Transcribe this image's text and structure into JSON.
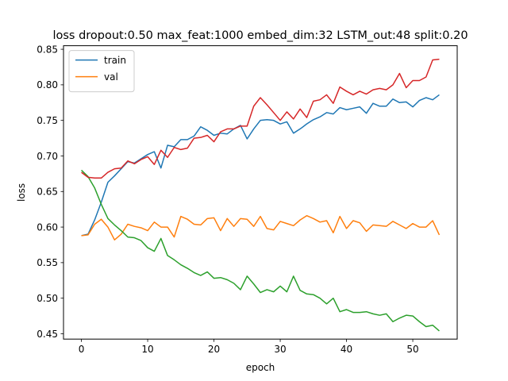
{
  "chart_data": {
    "type": "line",
    "title": "loss dropout:0.50 max_feat:1000 embed_dim:32 LSTM_out:48 split:0.20",
    "xlabel": "epoch",
    "ylabel": "loss",
    "xlim": [
      -2.7,
      56.7
    ],
    "ylim": [
      0.4425,
      0.855
    ],
    "xticks": [
      0,
      10,
      20,
      30,
      40,
      50
    ],
    "yticks": [
      0.45,
      0.5,
      0.55,
      0.6,
      0.65,
      0.7,
      0.75,
      0.8,
      0.85
    ],
    "ytick_labels": [
      "0.45",
      "0.50",
      "0.55",
      "0.60",
      "0.65",
      "0.70",
      "0.75",
      "0.80",
      "0.85"
    ],
    "grid": false,
    "legend_position": "upper-left",
    "x": [
      0,
      1,
      2,
      3,
      4,
      5,
      6,
      7,
      8,
      9,
      10,
      11,
      12,
      13,
      14,
      15,
      16,
      17,
      18,
      19,
      20,
      21,
      22,
      23,
      24,
      25,
      26,
      27,
      28,
      29,
      30,
      31,
      32,
      33,
      34,
      35,
      36,
      37,
      38,
      39,
      40,
      41,
      42,
      43,
      44,
      45,
      46,
      47,
      48,
      49,
      50,
      51,
      52,
      53,
      54
    ],
    "series": [
      {
        "name": "train",
        "color": "#1f77b4",
        "in_legend": true,
        "values": [
          0.588,
          0.59,
          0.61,
          0.635,
          0.663,
          0.672,
          0.682,
          0.692,
          0.69,
          0.696,
          0.702,
          0.706,
          0.683,
          0.715,
          0.713,
          0.723,
          0.723,
          0.728,
          0.741,
          0.736,
          0.729,
          0.732,
          0.731,
          0.738,
          0.743,
          0.724,
          0.738,
          0.75,
          0.751,
          0.75,
          0.745,
          0.748,
          0.732,
          0.738,
          0.745,
          0.751,
          0.755,
          0.761,
          0.759,
          0.768,
          0.765,
          0.767,
          0.769,
          0.76,
          0.774,
          0.77,
          0.77,
          0.78,
          0.775,
          0.776,
          0.769,
          0.778,
          0.782,
          0.779,
          0.786
        ]
      },
      {
        "name": "val",
        "color": "#ff7f0e",
        "in_legend": true,
        "values": [
          0.588,
          0.589,
          0.604,
          0.611,
          0.6,
          0.582,
          0.59,
          0.604,
          0.601,
          0.599,
          0.595,
          0.607,
          0.6,
          0.6,
          0.586,
          0.615,
          0.611,
          0.604,
          0.603,
          0.612,
          0.613,
          0.595,
          0.612,
          0.601,
          0.612,
          0.611,
          0.601,
          0.615,
          0.598,
          0.596,
          0.608,
          0.605,
          0.602,
          0.61,
          0.616,
          0.612,
          0.607,
          0.609,
          0.592,
          0.615,
          0.598,
          0.609,
          0.606,
          0.594,
          0.603,
          0.602,
          0.601,
          0.608,
          0.603,
          0.598,
          0.605,
          0.6,
          0.6,
          0.609,
          0.589
        ]
      },
      {
        "color": "#2ca02c",
        "in_legend": false,
        "values": [
          0.68,
          0.671,
          0.655,
          0.632,
          0.612,
          0.603,
          0.595,
          0.586,
          0.585,
          0.581,
          0.571,
          0.566,
          0.584,
          0.56,
          0.554,
          0.547,
          0.542,
          0.536,
          0.532,
          0.537,
          0.528,
          0.529,
          0.526,
          0.521,
          0.512,
          0.531,
          0.52,
          0.508,
          0.512,
          0.509,
          0.517,
          0.509,
          0.531,
          0.511,
          0.506,
          0.505,
          0.5,
          0.492,
          0.5,
          0.481,
          0.484,
          0.48,
          0.48,
          0.481,
          0.478,
          0.476,
          0.478,
          0.467,
          0.472,
          0.476,
          0.475,
          0.467,
          0.46,
          0.462,
          0.454
        ]
      },
      {
        "color": "#d62728",
        "in_legend": false,
        "values": [
          0.677,
          0.67,
          0.669,
          0.669,
          0.677,
          0.682,
          0.683,
          0.693,
          0.689,
          0.695,
          0.699,
          0.688,
          0.708,
          0.698,
          0.712,
          0.709,
          0.711,
          0.725,
          0.726,
          0.729,
          0.72,
          0.734,
          0.738,
          0.738,
          0.742,
          0.742,
          0.77,
          0.782,
          0.772,
          0.761,
          0.75,
          0.762,
          0.752,
          0.766,
          0.754,
          0.777,
          0.779,
          0.786,
          0.774,
          0.797,
          0.791,
          0.786,
          0.791,
          0.787,
          0.793,
          0.795,
          0.793,
          0.8,
          0.816,
          0.796,
          0.806,
          0.806,
          0.811,
          0.835,
          0.836
        ]
      }
    ]
  }
}
